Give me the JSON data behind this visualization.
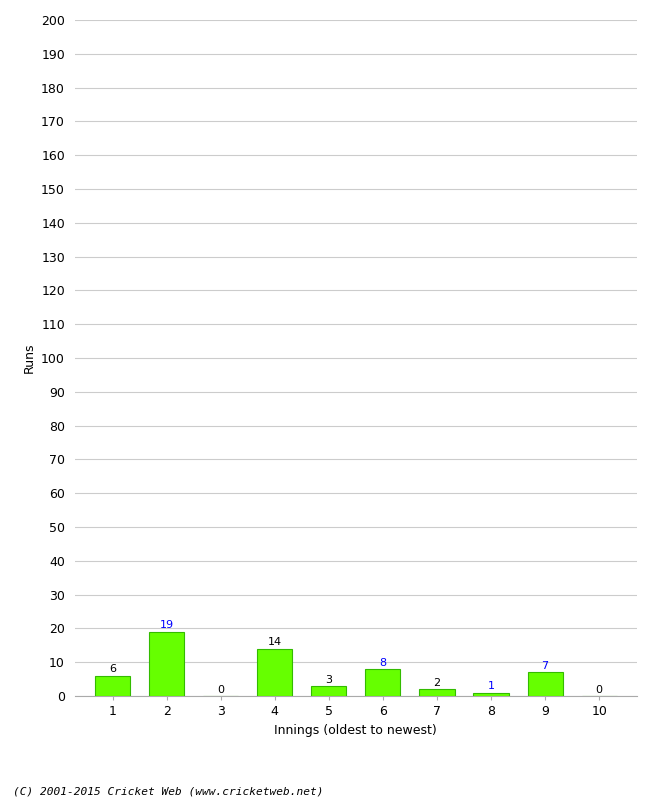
{
  "categories": [
    1,
    2,
    3,
    4,
    5,
    6,
    7,
    8,
    9,
    10
  ],
  "values": [
    6,
    19,
    0,
    14,
    3,
    8,
    2,
    1,
    7,
    0
  ],
  "bar_color": "#66ff00",
  "bar_edge_color": "#33bb00",
  "label_color_blue_indices": [
    1,
    5,
    7,
    8
  ],
  "xlabel": "Innings (oldest to newest)",
  "ylabel": "Runs",
  "ylim": [
    0,
    200
  ],
  "yticks": [
    0,
    10,
    20,
    30,
    40,
    50,
    60,
    70,
    80,
    90,
    100,
    110,
    120,
    130,
    140,
    150,
    160,
    170,
    180,
    190,
    200
  ],
  "footer": "(C) 2001-2015 Cricket Web (www.cricketweb.net)",
  "background_color": "#ffffff",
  "grid_color": "#cccccc",
  "axis_fontsize": 9,
  "label_fontsize": 8,
  "footer_fontsize": 8
}
